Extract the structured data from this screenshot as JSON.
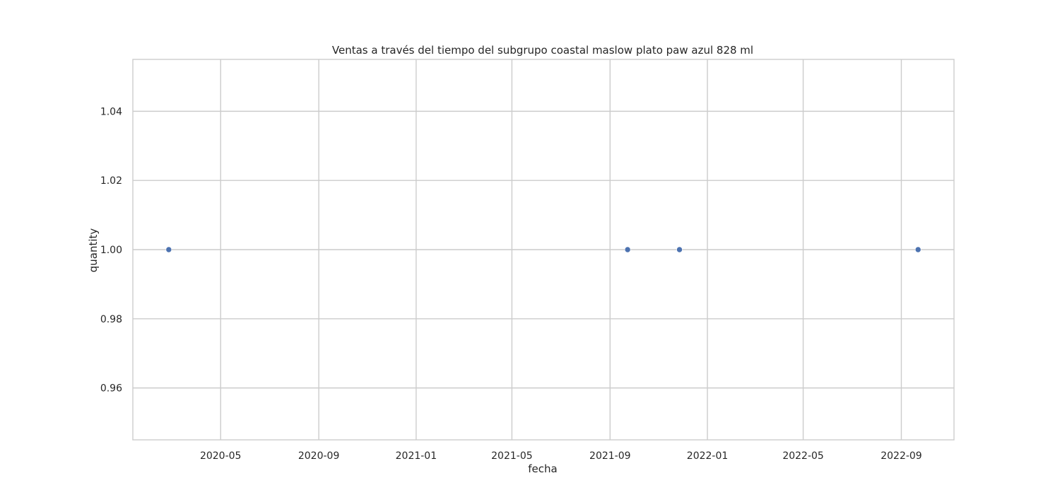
{
  "chart_data": {
    "type": "scatter",
    "title": "Ventas a través del tiempo del subgrupo coastal maslow  plato paw azul 828 ml",
    "xlabel": "fecha",
    "ylabel": "quantity",
    "x_ticks": [
      "2020-05",
      "2020-09",
      "2021-01",
      "2021-05",
      "2021-09",
      "2022-01",
      "2022-05",
      "2022-09"
    ],
    "y_ticks": [
      "0.96",
      "0.98",
      "1.00",
      "1.02",
      "1.04"
    ],
    "xlim": [
      "2020-01-12",
      "2022-11-06"
    ],
    "ylim": [
      0.945,
      1.055
    ],
    "grid": true,
    "points": [
      {
        "x": "2020-02-26",
        "y": 1.0
      },
      {
        "x": "2021-09-23",
        "y": 1.0
      },
      {
        "x": "2021-11-27",
        "y": 1.0
      },
      {
        "x": "2022-09-22",
        "y": 1.0
      }
    ],
    "colors": {
      "marker": "#4c72b0",
      "grid": "#cccccc",
      "frame": "#cccccc",
      "text": "#262626"
    }
  }
}
